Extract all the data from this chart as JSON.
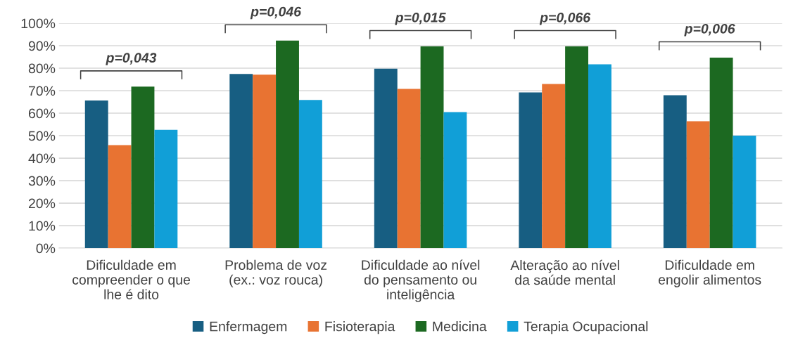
{
  "chart_data": {
    "type": "bar",
    "categories": [
      "Dificuldade em\ncompreender o que\nlhe é dito",
      "Problema de voz\n(ex.: voz rouca)",
      "Dificuldade ao nível\ndo pensamento ou\ninteligência",
      "Alteração ao nível\nda saúde mental",
      "Dificuldade em\nengolir alimentos"
    ],
    "series": [
      {
        "name": "Enfermagem",
        "color": "#175e82",
        "values": [
          65.6,
          77.4,
          79.8,
          69.2,
          68.0
        ]
      },
      {
        "name": "Fisioterapia",
        "color": "#e87332",
        "values": [
          45.8,
          77.1,
          70.8,
          73.0,
          56.4
        ]
      },
      {
        "name": "Medicina",
        "color": "#1c6921",
        "values": [
          71.8,
          92.3,
          89.7,
          89.7,
          84.7
        ]
      },
      {
        "name": "Terapia Ocupacional",
        "color": "#119fd7",
        "values": [
          52.6,
          65.9,
          60.5,
          81.7,
          50.0
        ]
      }
    ],
    "annotations": [
      "p=0,043",
      "p=0,046",
      "p=0,015",
      "p=0,066",
      "p=0,006"
    ],
    "ylim": [
      0,
      100
    ],
    "yticks": [
      {
        "value": 0,
        "label": "0%"
      },
      {
        "value": 10,
        "label": "10%"
      },
      {
        "value": 20,
        "label": "20%"
      },
      {
        "value": 30,
        "label": "30%"
      },
      {
        "value": 40,
        "label": "40%"
      },
      {
        "value": 50,
        "label": "50%"
      },
      {
        "value": 60,
        "label": "60%"
      },
      {
        "value": 70,
        "label": "70%"
      },
      {
        "value": 80,
        "label": "80%"
      },
      {
        "value": 90,
        "label": "90%"
      },
      {
        "value": 100,
        "label": "100%"
      }
    ],
    "grid": "y",
    "legend": "bottom"
  }
}
